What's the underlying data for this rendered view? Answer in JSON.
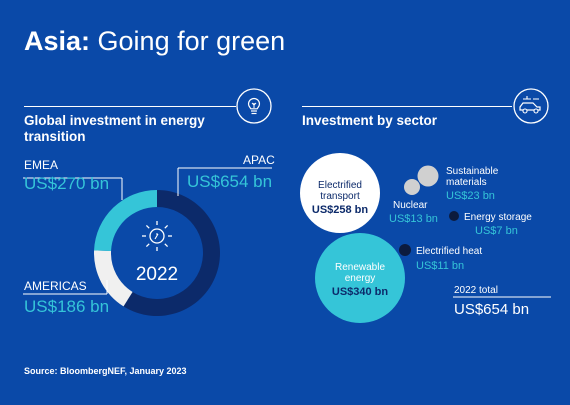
{
  "title": {
    "bold": "Asia:",
    "rest": " Going for green"
  },
  "left_section": {
    "heading": "Global investment in energy transition"
  },
  "right_section": {
    "heading": "Investment by sector"
  },
  "source": "Source: BloombergNEF, January 2023",
  "colors": {
    "background": "#0a49a8",
    "apac": "#0c2a6a",
    "emea": "#35c5d8",
    "americas": "#f0f0f0",
    "accent": "#35c5d8"
  },
  "icons": [
    "lightbulb-icon",
    "electric-car-icon",
    "sun-icon"
  ],
  "chart_data": [
    {
      "type": "pie",
      "variant": "donut",
      "center_label": "2022",
      "slices": [
        {
          "name": "APAC",
          "value_label": "US$654 bn",
          "value": 654,
          "color": "#0c2a6a"
        },
        {
          "name": "EMEA",
          "value_label": "US$270 bn",
          "value": 270,
          "color": "#35c5d8"
        },
        {
          "name": "AMERICAS",
          "value_label": "US$186 bn",
          "value": 186,
          "color": "#f0f0f0"
        }
      ]
    },
    {
      "type": "bubble",
      "total_label": "2022 total",
      "total_value": "US$654 bn",
      "bubbles": [
        {
          "name": "Electrified transport",
          "lines": [
            "Electrified",
            "transport"
          ],
          "value_label": "US$258 bn",
          "value": 258,
          "color": "#ffffff"
        },
        {
          "name": "Renewable energy",
          "lines": [
            "Renewable",
            "energy"
          ],
          "value_label": "US$340 bn",
          "value": 340,
          "color": "#35c5d8"
        },
        {
          "name": "Sustainable materials",
          "lines": [
            "Sustainable",
            "materials"
          ],
          "value_label": "US$23 bn",
          "value": 23,
          "color": "#d0d0d0"
        },
        {
          "name": "Nuclear",
          "lines": [
            "Nuclear"
          ],
          "value_label": "US$13 bn",
          "value": 13,
          "color": "#d0d0d0"
        },
        {
          "name": "Energy storage",
          "lines": [
            "Energy storage"
          ],
          "value_label": "US$7 bn",
          "value": 7,
          "color": "#0c1b3e"
        },
        {
          "name": "Electrified heat",
          "lines": [
            "Electrified heat"
          ],
          "value_label": "US$11 bn",
          "value": 11,
          "color": "#0c1b3e"
        }
      ]
    }
  ]
}
